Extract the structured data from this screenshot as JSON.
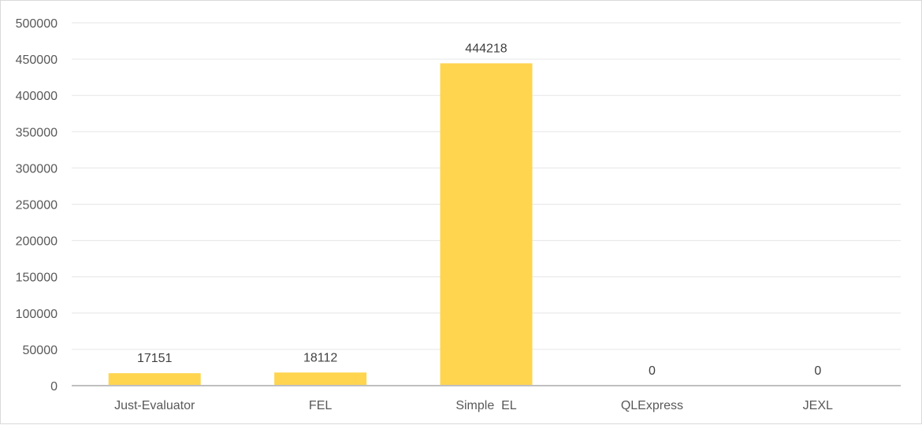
{
  "chart_data": {
    "type": "bar",
    "title": "",
    "xlabel": "",
    "ylabel": "",
    "categories": [
      "Just-Evaluator",
      "FEL",
      "Simple  EL",
      "QLExpress",
      "JEXL"
    ],
    "values": [
      17151,
      18112,
      444218,
      0,
      0
    ],
    "data_labels": [
      "17151",
      "18112",
      "444218",
      "0",
      "0"
    ],
    "ylim": [
      0,
      500000
    ],
    "yticks": [
      0,
      50000,
      100000,
      150000,
      200000,
      250000,
      300000,
      350000,
      400000,
      450000,
      500000
    ],
    "ytick_labels": [
      "0",
      "50000",
      "100000",
      "150000",
      "200000",
      "250000",
      "300000",
      "350000",
      "400000",
      "450000",
      "500000"
    ],
    "grid": true,
    "legend": "none",
    "colors": {
      "bar": "#FFD54F",
      "grid": "#e6e6e6",
      "axis": "#bfbfbf",
      "tick_text": "#595959",
      "label_text": "#404040"
    }
  }
}
